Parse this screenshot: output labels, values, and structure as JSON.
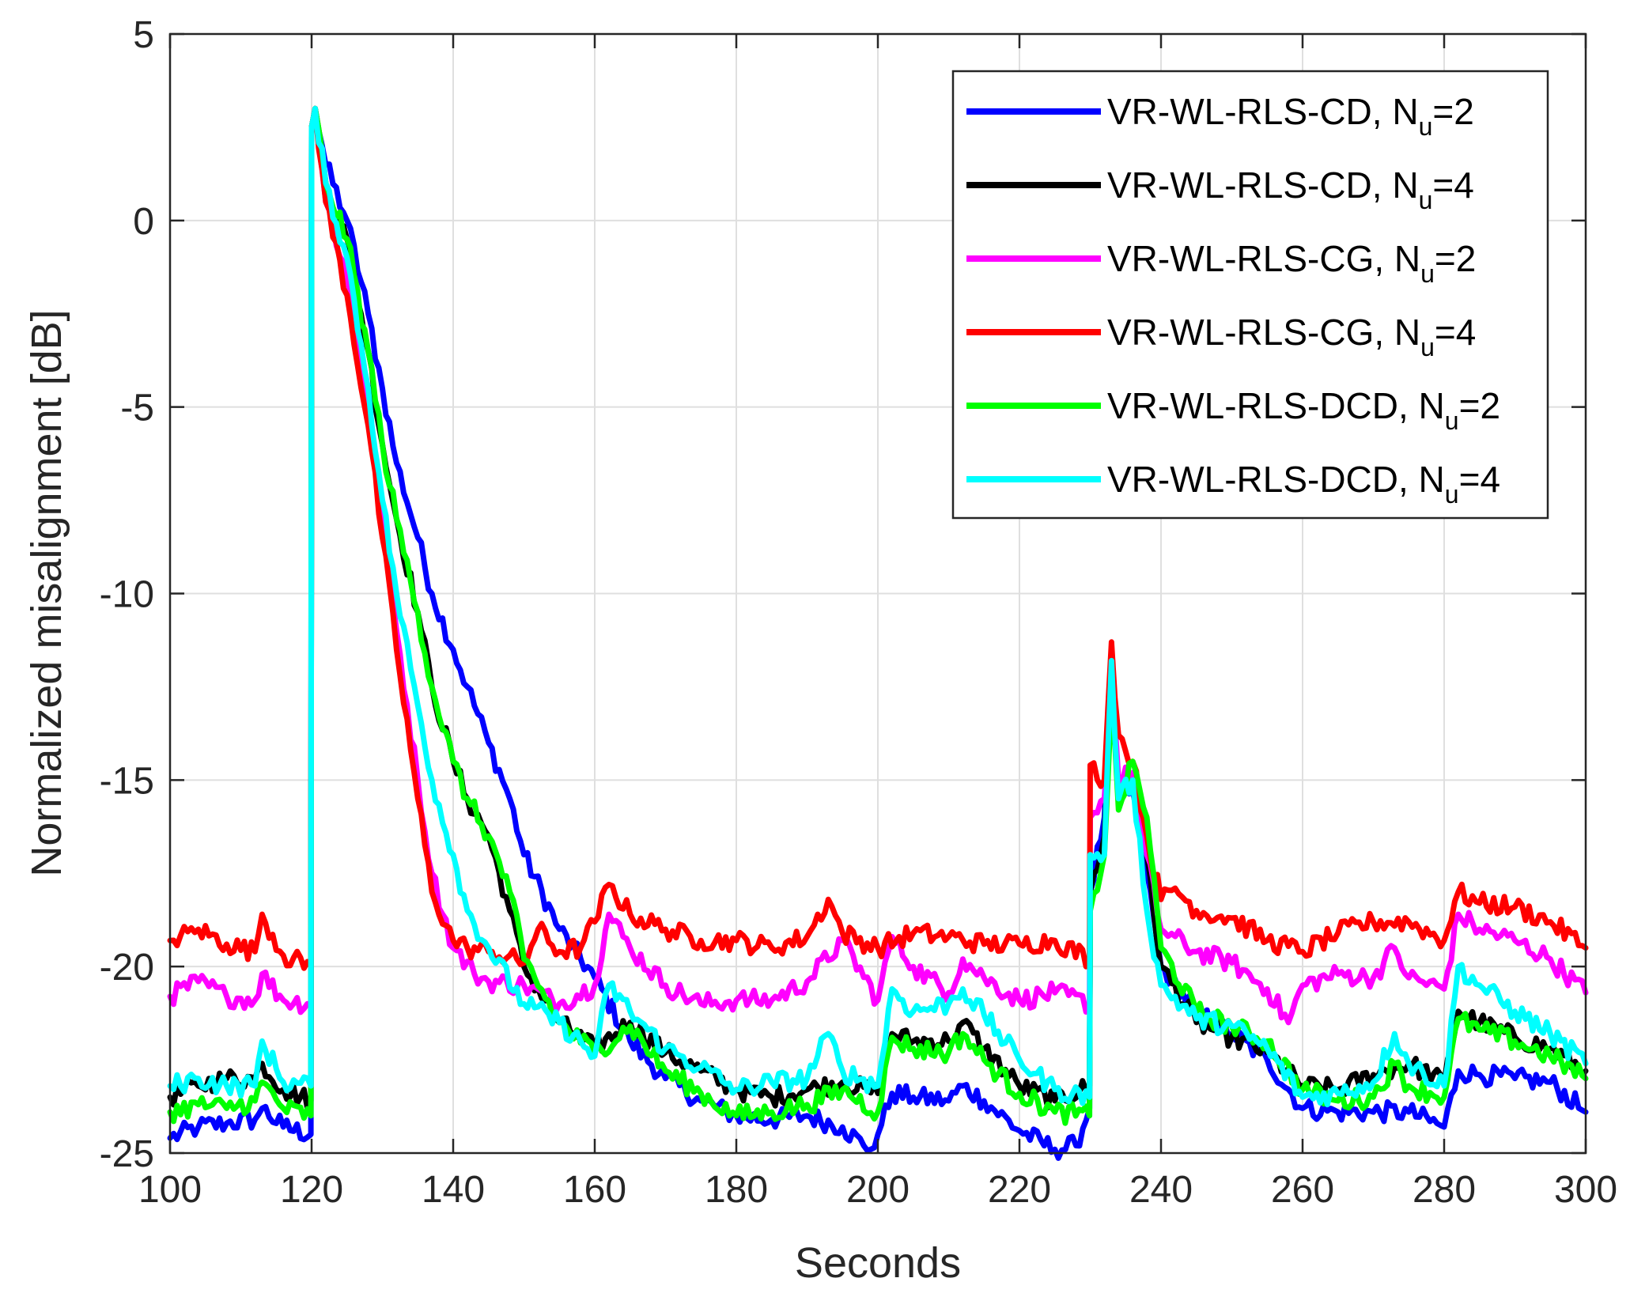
{
  "chart_data": {
    "type": "line",
    "title": "",
    "xlabel": "Seconds",
    "ylabel": "Normalized misalignment [dB]",
    "xlim": [
      100,
      300
    ],
    "ylim": [
      -25,
      5
    ],
    "grid": true,
    "legend_position": "top-right",
    "x_ticks": [
      100,
      120,
      140,
      160,
      180,
      200,
      220,
      240,
      260,
      280,
      300
    ],
    "x_tick_labels": [
      "100",
      "120",
      "140",
      "160",
      "180",
      "200",
      "220",
      "240",
      "260",
      "280",
      "300"
    ],
    "y_ticks": [
      5,
      0,
      -5,
      -10,
      -15,
      -20,
      -25
    ],
    "y_tick_labels": [
      "5",
      "0",
      "-5",
      "-10",
      "-15",
      "-20",
      "-25"
    ],
    "series": [
      {
        "name": "VR-WL-RLS-CD, N_u=2",
        "legend_main": "VR-WL-RLS-CD, N",
        "legend_sub": "u",
        "legend_tail": "=2",
        "color": "#0000ff",
        "x": [
          100,
          104,
          108,
          112,
          113,
          116,
          119.9,
          120,
          120.5,
          122,
          125,
          128,
          130,
          132,
          135,
          137,
          140,
          142,
          145,
          148,
          150,
          155,
          160,
          165,
          170,
          175,
          180,
          185,
          190,
          195,
          198,
          199,
          200,
          202,
          205,
          210,
          212,
          215,
          220,
          225,
          228,
          229.9,
          230,
          232,
          233,
          234,
          236,
          238,
          240,
          245,
          250,
          255,
          260,
          265,
          270,
          275,
          280,
          282,
          285,
          290,
          295,
          300
        ],
        "y": [
          -24.6,
          -24.3,
          -24.2,
          -24.1,
          -23.8,
          -24.3,
          -24.5,
          2.5,
          3.0,
          1.5,
          0.0,
          -2.5,
          -4.5,
          -6.5,
          -8.5,
          -10.0,
          -11.5,
          -12.5,
          -14.0,
          -15.5,
          -17.0,
          -19.0,
          -20.3,
          -22.0,
          -23.0,
          -23.6,
          -24.0,
          -24.1,
          -24.0,
          -24.3,
          -24.8,
          -24.9,
          -24.5,
          -23.4,
          -23.5,
          -23.6,
          -23.2,
          -23.6,
          -24.4,
          -24.9,
          -24.8,
          -23.8,
          -18.0,
          -16.0,
          -12.5,
          -15.5,
          -15.3,
          -17.5,
          -20.0,
          -21.2,
          -21.8,
          -22.5,
          -23.8,
          -23.9,
          -23.9,
          -23.9,
          -24.3,
          -22.8,
          -22.9,
          -23.0,
          -23.1,
          -23.9
        ]
      },
      {
        "name": "VR-WL-RLS-CD, N_u=4",
        "legend_main": "VR-WL-RLS-CD, N",
        "legend_sub": "u",
        "legend_tail": "=4",
        "color": "#000000",
        "x": [
          100,
          104,
          108,
          112,
          113,
          116,
          119.9,
          120,
          120.5,
          122,
          125,
          128,
          130,
          132,
          135,
          137,
          140,
          142,
          145,
          148,
          150,
          155,
          160,
          165,
          170,
          175,
          180,
          185,
          190,
          195,
          200,
          202,
          205,
          210,
          212,
          215,
          220,
          225,
          229.9,
          230,
          232,
          233,
          234,
          236,
          238,
          240,
          245,
          250,
          255,
          260,
          265,
          270,
          275,
          280,
          282,
          285,
          290,
          295,
          300
        ],
        "y": [
          -23.5,
          -23.2,
          -23.0,
          -23.0,
          -22.6,
          -23.3,
          -23.6,
          2.5,
          3.0,
          1.0,
          -0.5,
          -3.5,
          -6.0,
          -8.0,
          -10.5,
          -12.5,
          -14.5,
          -15.5,
          -16.5,
          -18.5,
          -20.0,
          -21.5,
          -22.2,
          -21.5,
          -22.3,
          -22.8,
          -23.3,
          -23.5,
          -23.3,
          -23.1,
          -23.4,
          -21.8,
          -22.0,
          -22.0,
          -21.5,
          -22.2,
          -23.2,
          -23.6,
          -23.2,
          -18.0,
          -16.5,
          -12.5,
          -15.5,
          -15.0,
          -17.0,
          -20.0,
          -21.5,
          -21.9,
          -22.3,
          -23.2,
          -23.3,
          -22.9,
          -22.6,
          -23.1,
          -21.2,
          -21.5,
          -21.9,
          -22.2,
          -22.8
        ]
      },
      {
        "name": "VR-WL-RLS-CG, N_u=2",
        "legend_main": "VR-WL-RLS-CG, N",
        "legend_sub": "u",
        "legend_tail": "=2",
        "color": "#ff00ff",
        "x": [
          100,
          104,
          108,
          112,
          113,
          116,
          119.9,
          120,
          120.5,
          122,
          125,
          128,
          130,
          132,
          135,
          137,
          140,
          143,
          145,
          150,
          155,
          160,
          162,
          165,
          170,
          175,
          180,
          185,
          190,
          195,
          200,
          202,
          205,
          210,
          212,
          215,
          220,
          225,
          229.9,
          230,
          232,
          233,
          234,
          236,
          238,
          240,
          245,
          250,
          255,
          258,
          260,
          265,
          270,
          273,
          275,
          280,
          282,
          285,
          290,
          295,
          300
        ],
        "y": [
          -20.8,
          -20.4,
          -20.8,
          -20.9,
          -20.2,
          -20.9,
          -21.0,
          2.5,
          3.0,
          0.5,
          -1.5,
          -5.0,
          -8.0,
          -11.0,
          -15.0,
          -17.5,
          -19.5,
          -20.2,
          -20.4,
          -20.5,
          -21.0,
          -20.5,
          -18.6,
          -19.5,
          -20.5,
          -21.0,
          -20.9,
          -20.9,
          -20.4,
          -19.3,
          -20.9,
          -19.2,
          -20.0,
          -20.7,
          -19.8,
          -20.3,
          -20.9,
          -20.7,
          -21.0,
          -16.0,
          -15.5,
          -12.0,
          -15.0,
          -14.8,
          -17.0,
          -19.0,
          -19.6,
          -19.9,
          -20.6,
          -21.5,
          -20.5,
          -20.2,
          -20.3,
          -19.5,
          -20.3,
          -20.6,
          -18.6,
          -19.0,
          -19.3,
          -19.8,
          -20.7
        ]
      },
      {
        "name": "VR-WL-RLS-CG, N_u=4",
        "legend_main": "VR-WL-RLS-CG, N",
        "legend_sub": "u",
        "legend_tail": "=4",
        "color": "#ff0000",
        "x": [
          100,
          104,
          108,
          112,
          113,
          116,
          119.9,
          120,
          120.5,
          122,
          125,
          128,
          130,
          132,
          135,
          137,
          140,
          142,
          145,
          150,
          152,
          155,
          158,
          160,
          162,
          165,
          170,
          175,
          180,
          185,
          190,
          193,
          195,
          200,
          205,
          210,
          215,
          220,
          225,
          229.9,
          230,
          232,
          233,
          234,
          236,
          238,
          240,
          242,
          245,
          250,
          255,
          260,
          265,
          270,
          275,
          280,
          282,
          285,
          290,
          295,
          300
        ],
        "y": [
          -19.3,
          -19.0,
          -19.4,
          -19.6,
          -18.6,
          -19.7,
          -20.0,
          2.5,
          3.0,
          0.5,
          -2.0,
          -5.5,
          -8.5,
          -11.5,
          -15.5,
          -18.0,
          -19.3,
          -19.5,
          -19.6,
          -19.9,
          -19.0,
          -19.6,
          -19.5,
          -18.8,
          -17.8,
          -18.6,
          -19.0,
          -19.3,
          -19.3,
          -19.5,
          -19.2,
          -18.2,
          -19.1,
          -19.5,
          -19.1,
          -19.2,
          -19.4,
          -19.4,
          -19.3,
          -19.8,
          -14.6,
          -15.0,
          -11.3,
          -13.8,
          -14.5,
          -16.5,
          -18.2,
          -17.9,
          -18.5,
          -18.7,
          -19.3,
          -19.6,
          -19.1,
          -18.8,
          -18.8,
          -19.3,
          -18.0,
          -18.3,
          -18.4,
          -18.8,
          -19.5
        ]
      },
      {
        "name": "VR-WL-RLS-DCD, N_u=2",
        "legend_main": "VR-WL-RLS-DCD, N",
        "legend_sub": "u",
        "legend_tail": "=2",
        "color": "#00ff00",
        "x": [
          100,
          104,
          108,
          112,
          113,
          116,
          119.9,
          120,
          120.5,
          122,
          125,
          128,
          130,
          132,
          135,
          137,
          140,
          142,
          145,
          148,
          150,
          155,
          160,
          165,
          170,
          175,
          180,
          185,
          190,
          195,
          200,
          202,
          205,
          210,
          212,
          215,
          220,
          225,
          229.9,
          230,
          232,
          233,
          234,
          236,
          238,
          240,
          245,
          250,
          255,
          260,
          265,
          270,
          273,
          275,
          280,
          282,
          285,
          290,
          295,
          300
        ],
        "y": [
          -23.9,
          -23.7,
          -23.8,
          -23.6,
          -23.1,
          -23.8,
          -24.0,
          2.5,
          3.0,
          1.0,
          -0.5,
          -3.5,
          -6.0,
          -8.0,
          -10.5,
          -12.5,
          -14.5,
          -15.5,
          -16.5,
          -18.0,
          -19.8,
          -21.5,
          -22.3,
          -21.6,
          -22.8,
          -23.4,
          -24.0,
          -23.9,
          -23.7,
          -23.3,
          -23.9,
          -21.9,
          -22.2,
          -22.3,
          -21.8,
          -22.5,
          -23.4,
          -23.9,
          -24.0,
          -18.5,
          -17.0,
          -12.7,
          -15.8,
          -14.5,
          -16.0,
          -19.5,
          -21.2,
          -21.6,
          -22.0,
          -23.3,
          -23.6,
          -23.5,
          -22.6,
          -23.2,
          -23.5,
          -21.4,
          -21.7,
          -22.0,
          -22.4,
          -23.0
        ]
      },
      {
        "name": "VR-WL-RLS-DCD, N_u=4",
        "legend_main": "VR-WL-RLS-DCD, N",
        "legend_sub": "u",
        "legend_tail": "=4",
        "color": "#00ffff",
        "x": [
          100,
          104,
          108,
          112,
          113,
          116,
          119.9,
          120,
          120.5,
          122,
          125,
          128,
          130,
          132,
          135,
          137,
          140,
          142,
          145,
          150,
          155,
          160,
          162,
          165,
          170,
          175,
          180,
          185,
          190,
          193,
          195,
          200,
          202,
          205,
          210,
          212,
          215,
          220,
          225,
          229.9,
          230,
          232,
          233,
          234,
          236,
          238,
          240,
          245,
          250,
          255,
          260,
          265,
          270,
          273,
          275,
          280,
          282,
          285,
          290,
          295,
          300
        ],
        "y": [
          -23.2,
          -23.0,
          -23.2,
          -23.2,
          -22.0,
          -23.1,
          -23.2,
          2.5,
          3.0,
          1.0,
          -1.0,
          -4.5,
          -7.5,
          -10.0,
          -13.0,
          -15.0,
          -17.0,
          -18.5,
          -19.5,
          -21.0,
          -21.5,
          -22.4,
          -20.5,
          -21.2,
          -22.2,
          -22.7,
          -23.3,
          -23.1,
          -23.0,
          -21.8,
          -22.8,
          -23.2,
          -20.6,
          -21.2,
          -21.0,
          -20.6,
          -21.3,
          -22.5,
          -23.3,
          -23.5,
          -17.0,
          -17.0,
          -11.8,
          -15.5,
          -15.0,
          -18.5,
          -20.5,
          -21.4,
          -21.6,
          -22.2,
          -23.5,
          -23.4,
          -23.1,
          -21.8,
          -22.6,
          -23.2,
          -20.0,
          -20.5,
          -21.2,
          -21.8,
          -22.6
        ]
      }
    ]
  }
}
